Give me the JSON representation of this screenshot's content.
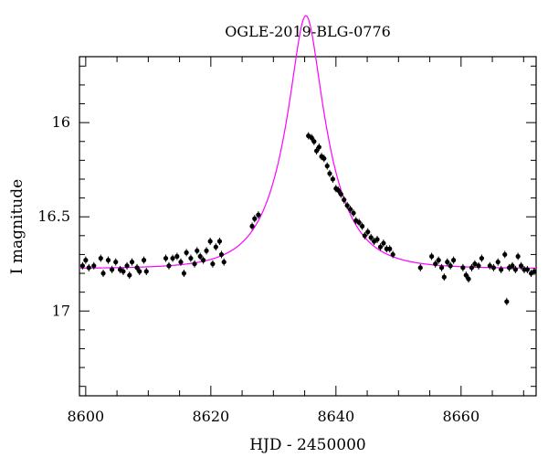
{
  "chart_data": {
    "type": "scatter",
    "title": "OGLE-2019-BLG-0776",
    "xlabel": "HJD - 2450000",
    "ylabel": "I magnitude",
    "xlim": [
      8599,
      8672
    ],
    "ylim": [
      17.45,
      15.65
    ],
    "y_inverted": true,
    "x_ticks": [
      8600,
      8620,
      8640,
      8660
    ],
    "x_tick_labels": [
      "8600",
      "8620",
      "8640",
      "8660"
    ],
    "y_ticks": [
      16,
      16.5,
      17
    ],
    "y_tick_labels": [
      "16",
      "16.5",
      "17"
    ],
    "grid": false,
    "legend": "none",
    "colors": {
      "points": "#000000",
      "model": "#ff00ff"
    },
    "model": {
      "t0": 8635.2,
      "u0": 0.3,
      "tE": 7.0,
      "base": 16.775,
      "name": ""
    },
    "points": [
      {
        "x": 8599.5,
        "y": 16.76
      },
      {
        "x": 8600.0,
        "y": 16.73
      },
      {
        "x": 8600.5,
        "y": 16.77
      },
      {
        "x": 8601.3,
        "y": 16.76
      },
      {
        "x": 8602.4,
        "y": 16.72
      },
      {
        "x": 8602.8,
        "y": 16.8
      },
      {
        "x": 8603.6,
        "y": 16.73
      },
      {
        "x": 8604.2,
        "y": 16.78
      },
      {
        "x": 8604.8,
        "y": 16.74
      },
      {
        "x": 8605.5,
        "y": 16.78
      },
      {
        "x": 8606.0,
        "y": 16.79
      },
      {
        "x": 8606.6,
        "y": 16.76
      },
      {
        "x": 8607.0,
        "y": 16.81
      },
      {
        "x": 8607.4,
        "y": 16.74
      },
      {
        "x": 8608.2,
        "y": 16.77
      },
      {
        "x": 8608.6,
        "y": 16.79
      },
      {
        "x": 8609.3,
        "y": 16.73
      },
      {
        "x": 8609.7,
        "y": 16.79
      },
      {
        "x": 8612.8,
        "y": 16.72
      },
      {
        "x": 8613.3,
        "y": 16.76
      },
      {
        "x": 8613.9,
        "y": 16.72
      },
      {
        "x": 8614.6,
        "y": 16.71
      },
      {
        "x": 8615.2,
        "y": 16.74
      },
      {
        "x": 8615.7,
        "y": 16.8
      },
      {
        "x": 8616.1,
        "y": 16.69
      },
      {
        "x": 8616.8,
        "y": 16.72
      },
      {
        "x": 8617.4,
        "y": 16.75
      },
      {
        "x": 8617.8,
        "y": 16.68
      },
      {
        "x": 8618.3,
        "y": 16.71
      },
      {
        "x": 8618.8,
        "y": 16.73
      },
      {
        "x": 8619.3,
        "y": 16.68
      },
      {
        "x": 8619.9,
        "y": 16.63
      },
      {
        "x": 8620.3,
        "y": 16.75
      },
      {
        "x": 8620.8,
        "y": 16.66
      },
      {
        "x": 8621.4,
        "y": 16.63
      },
      {
        "x": 8621.7,
        "y": 16.7
      },
      {
        "x": 8622.1,
        "y": 16.74
      },
      {
        "x": 8626.6,
        "y": 16.55
      },
      {
        "x": 8627.0,
        "y": 16.51
      },
      {
        "x": 8627.6,
        "y": 16.49
      },
      {
        "x": 8635.6,
        "y": 16.07
      },
      {
        "x": 8636.1,
        "y": 16.08
      },
      {
        "x": 8636.5,
        "y": 16.1
      },
      {
        "x": 8636.9,
        "y": 16.15
      },
      {
        "x": 8637.3,
        "y": 16.13
      },
      {
        "x": 8637.7,
        "y": 16.18
      },
      {
        "x": 8638.1,
        "y": 16.19
      },
      {
        "x": 8638.6,
        "y": 16.23
      },
      {
        "x": 8639.0,
        "y": 16.27
      },
      {
        "x": 8639.5,
        "y": 16.3
      },
      {
        "x": 8640.0,
        "y": 16.35
      },
      {
        "x": 8640.4,
        "y": 16.36
      },
      {
        "x": 8640.8,
        "y": 16.38
      },
      {
        "x": 8641.3,
        "y": 16.41
      },
      {
        "x": 8641.8,
        "y": 16.44
      },
      {
        "x": 8642.3,
        "y": 16.46
      },
      {
        "x": 8642.8,
        "y": 16.48
      },
      {
        "x": 8643.2,
        "y": 16.52
      },
      {
        "x": 8643.7,
        "y": 16.53
      },
      {
        "x": 8644.2,
        "y": 16.55
      },
      {
        "x": 8644.6,
        "y": 16.6
      },
      {
        "x": 8645.1,
        "y": 16.58
      },
      {
        "x": 8645.6,
        "y": 16.61
      },
      {
        "x": 8646.1,
        "y": 16.63
      },
      {
        "x": 8646.6,
        "y": 16.62
      },
      {
        "x": 8647.1,
        "y": 16.66
      },
      {
        "x": 8647.6,
        "y": 16.64
      },
      {
        "x": 8648.1,
        "y": 16.67
      },
      {
        "x": 8648.6,
        "y": 16.67
      },
      {
        "x": 8649.1,
        "y": 16.7
      },
      {
        "x": 8653.5,
        "y": 16.77
      },
      {
        "x": 8655.3,
        "y": 16.71
      },
      {
        "x": 8655.9,
        "y": 16.75
      },
      {
        "x": 8656.4,
        "y": 16.73
      },
      {
        "x": 8656.9,
        "y": 16.77
      },
      {
        "x": 8657.3,
        "y": 16.82
      },
      {
        "x": 8657.8,
        "y": 16.74
      },
      {
        "x": 8658.3,
        "y": 16.76
      },
      {
        "x": 8658.8,
        "y": 16.73
      },
      {
        "x": 8660.3,
        "y": 16.77
      },
      {
        "x": 8660.8,
        "y": 16.81
      },
      {
        "x": 8661.2,
        "y": 16.83
      },
      {
        "x": 8661.7,
        "y": 16.77
      },
      {
        "x": 8662.2,
        "y": 16.75
      },
      {
        "x": 8662.8,
        "y": 16.76
      },
      {
        "x": 8663.3,
        "y": 16.72
      },
      {
        "x": 8664.6,
        "y": 16.76
      },
      {
        "x": 8665.2,
        "y": 16.77
      },
      {
        "x": 8665.9,
        "y": 16.74
      },
      {
        "x": 8666.4,
        "y": 16.78
      },
      {
        "x": 8667.0,
        "y": 16.7
      },
      {
        "x": 8667.3,
        "y": 16.95
      },
      {
        "x": 8667.7,
        "y": 16.77
      },
      {
        "x": 8668.2,
        "y": 16.76
      },
      {
        "x": 8668.7,
        "y": 16.78
      },
      {
        "x": 8669.1,
        "y": 16.71
      },
      {
        "x": 8669.6,
        "y": 16.76
      },
      {
        "x": 8670.1,
        "y": 16.78
      },
      {
        "x": 8670.6,
        "y": 16.78
      },
      {
        "x": 8671.2,
        "y": 16.8
      },
      {
        "x": 8671.7,
        "y": 16.79
      }
    ]
  }
}
